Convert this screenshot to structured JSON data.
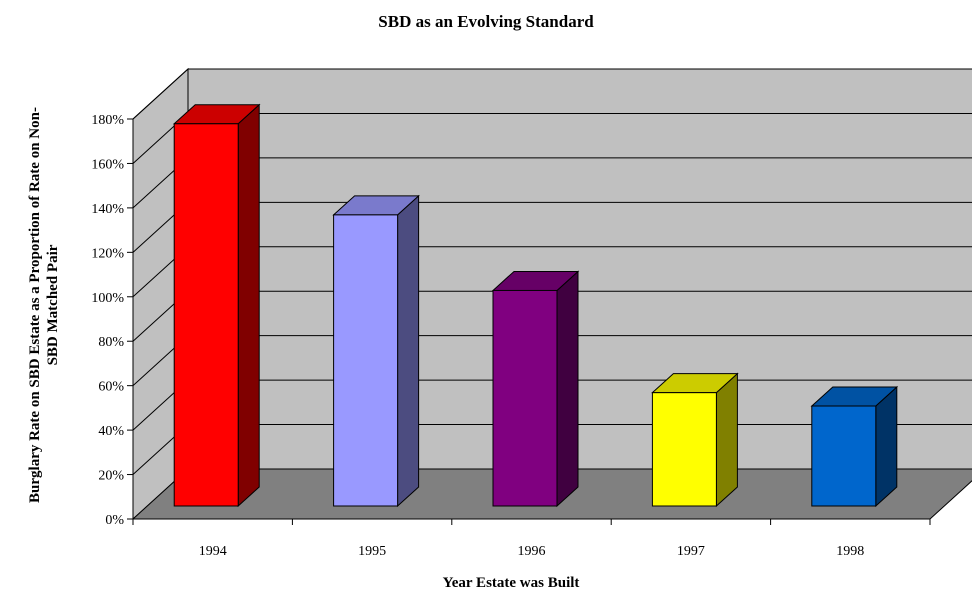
{
  "chart_data": {
    "type": "bar",
    "title": "SBD as an Evolving Standard",
    "xlabel": "Year Estate was Built",
    "ylabel": "Burglary Rate on SBD Estate as a Proportion of Rate on Non-SBD Matched Pair",
    "categories": [
      "1994",
      "1995",
      "1996",
      "1997",
      "1998"
    ],
    "values": [
      1.72,
      1.31,
      0.97,
      0.51,
      0.45
    ],
    "ylim": [
      0,
      1.8
    ],
    "yticks": [
      "0%",
      "20%",
      "40%",
      "60%",
      "80%",
      "100%",
      "120%",
      "140%",
      "160%",
      "180%"
    ],
    "grid": true,
    "three_d": true,
    "colors": {
      "front": [
        "#ff0000",
        "#9999ff",
        "#800080",
        "#ffff00",
        "#0066cc"
      ],
      "side": [
        "#800000",
        "#4c4c80",
        "#400040",
        "#808000",
        "#003366"
      ],
      "top": [
        "#cc0000",
        "#7a7acc",
        "#660066",
        "#cccc00",
        "#0052a3"
      ],
      "wall": "#c0c0c0",
      "floor": "#808080"
    }
  }
}
